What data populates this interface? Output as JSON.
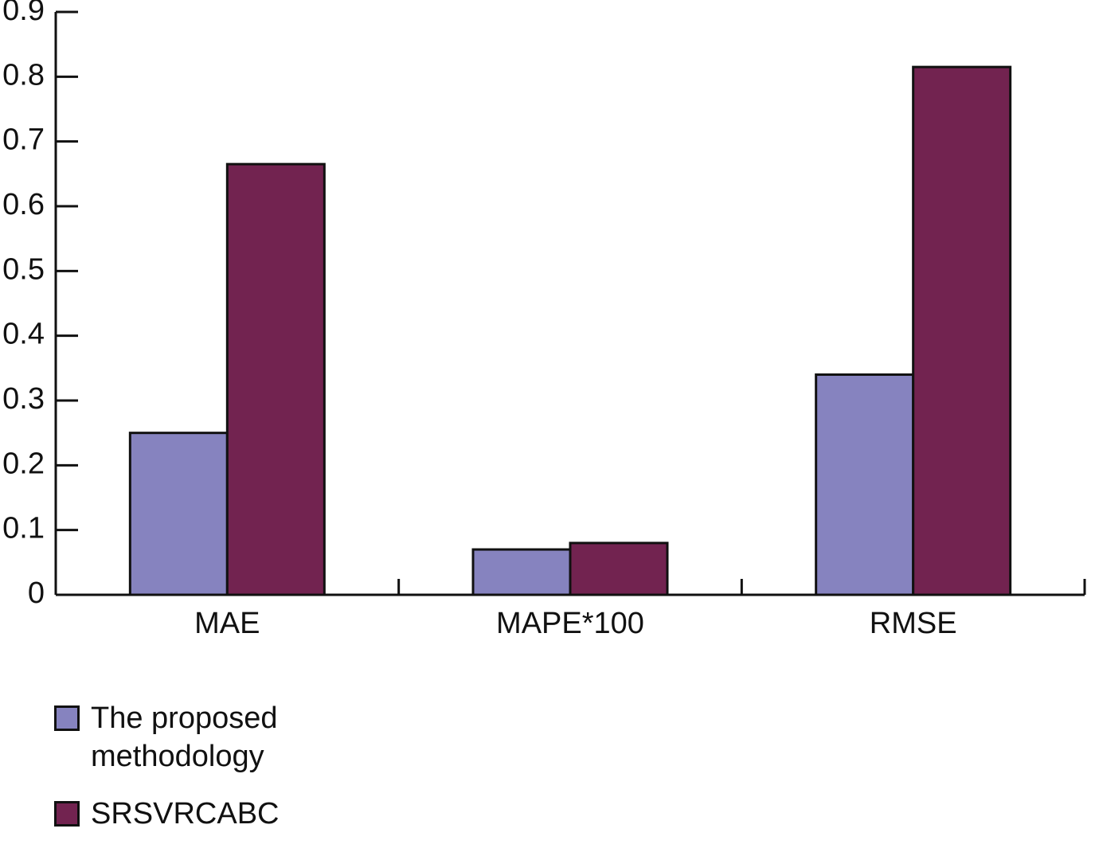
{
  "chart_data": {
    "type": "bar",
    "categories": [
      "MAE",
      "MAPE*100",
      "RMSE"
    ],
    "series": [
      {
        "name": "The proposed methodology",
        "color": "#8683bf",
        "values": [
          0.25,
          0.07,
          0.34
        ]
      },
      {
        "name": "SRSVRCABC",
        "color": "#722350",
        "values": [
          0.665,
          0.08,
          0.815
        ]
      }
    ],
    "ylim": [
      0,
      0.9
    ],
    "yticks": [
      0,
      0.1,
      0.2,
      0.3,
      0.4,
      0.5,
      0.6,
      0.7,
      0.8,
      0.9
    ],
    "grid": false,
    "legend": "bottom-left"
  }
}
